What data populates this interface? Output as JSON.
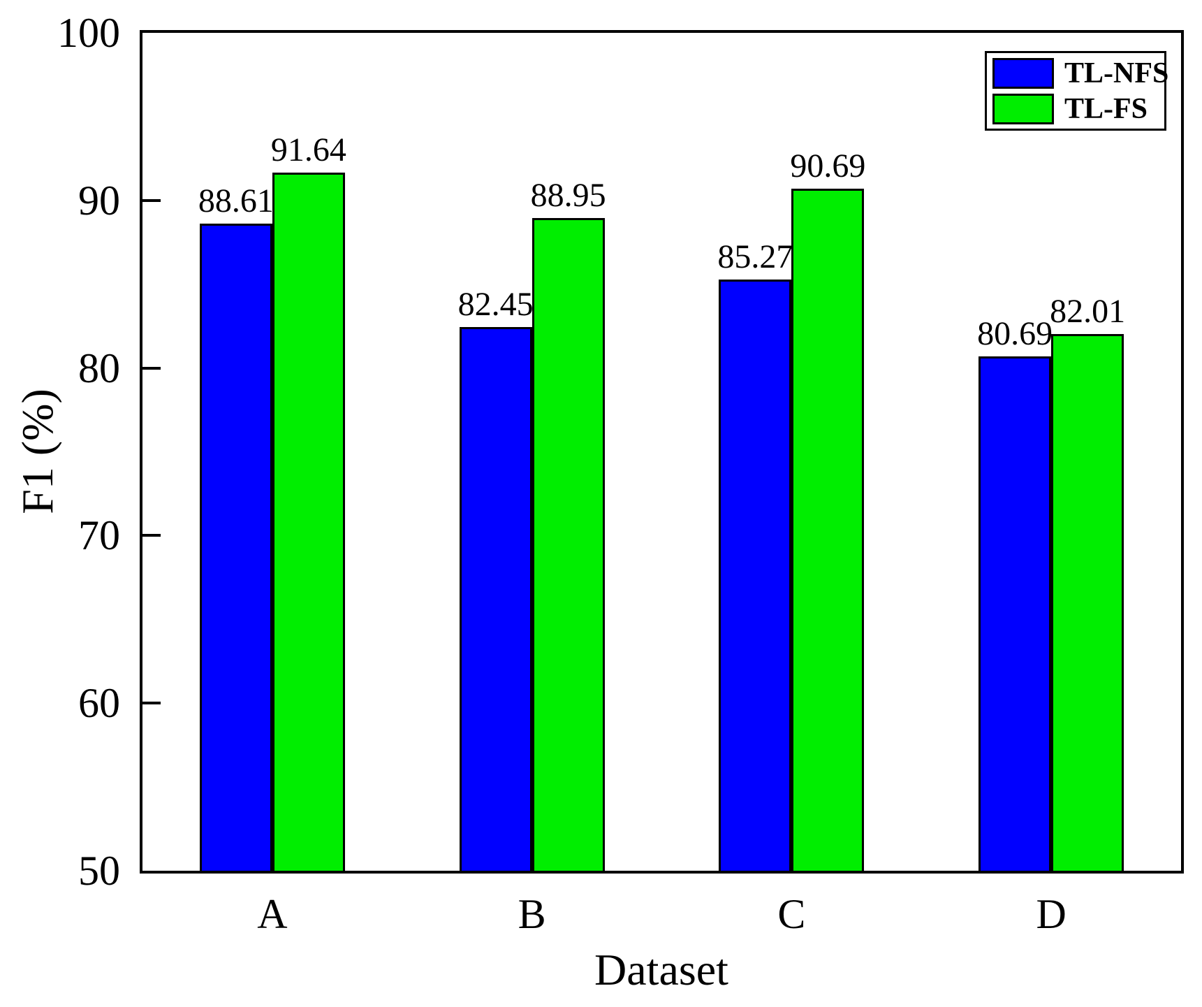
{
  "chart_data": {
    "type": "bar",
    "title": "",
    "xlabel": "Dataset",
    "ylabel": "F1 (%)",
    "categories": [
      "A",
      "B",
      "C",
      "D"
    ],
    "series": [
      {
        "name": "TL-NFS",
        "color": "#0000FF",
        "values": [
          88.61,
          82.45,
          85.27,
          80.69
        ]
      },
      {
        "name": "TL-FS",
        "color": "#00EE00",
        "values": [
          91.64,
          88.95,
          90.69,
          82.01
        ]
      }
    ],
    "ylim": [
      50,
      100
    ],
    "yticks": [
      50,
      60,
      70,
      80,
      90,
      100
    ],
    "grid": false,
    "legend_position": "top-right",
    "value_labels": true,
    "value_label_decimals": 2,
    "bar_border_color": "#000000",
    "axis_color": "#000000",
    "text_color": "#000000",
    "background_color": "#FFFFFF"
  }
}
